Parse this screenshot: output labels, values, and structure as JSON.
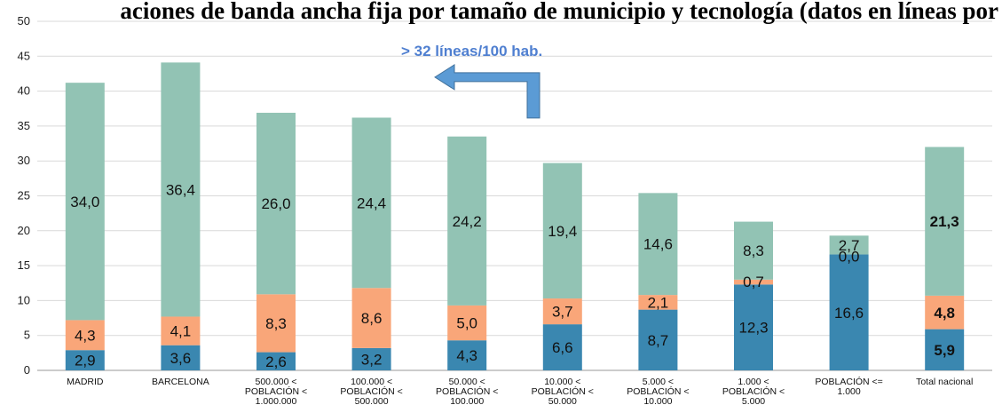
{
  "chart_data": {
    "type": "bar",
    "stacked": true,
    "title": "aciones de banda ancha fija por tamaño de municipio y tecnología (datos en líneas por",
    "categories": [
      [
        "MADRID"
      ],
      [
        "BARCELONA"
      ],
      [
        "500.000 <",
        "POBLACIÓN <",
        "1.000.000"
      ],
      [
        "100.000 <",
        "POBLACIÓN <",
        "500.000"
      ],
      [
        "50.000 <",
        "POBLACIÓN <",
        "100.000"
      ],
      [
        "10.000 <",
        "POBLACIÓN <",
        "50.000"
      ],
      [
        "5.000 <",
        "POBLACIÓN <",
        "10.000"
      ],
      [
        "1.000 <",
        "POBLACIÓN <",
        "5.000"
      ],
      [
        "POBLACIÓN <=",
        "1.000"
      ],
      [
        "Total nacional"
      ]
    ],
    "series": [
      {
        "color": "#3a87b0",
        "values": [
          2.9,
          3.6,
          2.6,
          3.2,
          4.3,
          6.6,
          8.7,
          12.3,
          16.6,
          5.9
        ]
      },
      {
        "color": "#f9a679",
        "values": [
          4.3,
          4.1,
          8.3,
          8.6,
          5.0,
          3.7,
          2.1,
          0.7,
          0.0,
          4.8
        ]
      },
      {
        "color": "#92c3b4",
        "values": [
          34.0,
          36.4,
          26.0,
          24.4,
          24.2,
          19.4,
          14.6,
          8.3,
          2.7,
          21.3
        ]
      }
    ],
    "data_labels": [
      [
        "2,9",
        "3,6",
        "2,6",
        "3,2",
        "4,3",
        "6,6",
        "8,7",
        "12,3",
        "16,6",
        "5,9"
      ],
      [
        "4,3",
        "4,1",
        "8,3",
        "8,6",
        "5,0",
        "3,7",
        "2,1",
        "0,7",
        "0,0",
        "4,8"
      ],
      [
        "34,0",
        "36,4",
        "26,0",
        "24,4",
        "24,2",
        "19,4",
        "14,6",
        "8,3",
        "2,7",
        "21,3"
      ]
    ],
    "ylim": [
      0,
      50
    ],
    "yticks": [
      0,
      5,
      10,
      15,
      20,
      25,
      30,
      35,
      40,
      45,
      50
    ],
    "grid": true,
    "legend": "none",
    "annotation": {
      "text": "> 32 líneas/100 hab.",
      "arrow_color": "#5b9bd5",
      "arrow_direction": "left",
      "arrow_level": 42
    }
  }
}
